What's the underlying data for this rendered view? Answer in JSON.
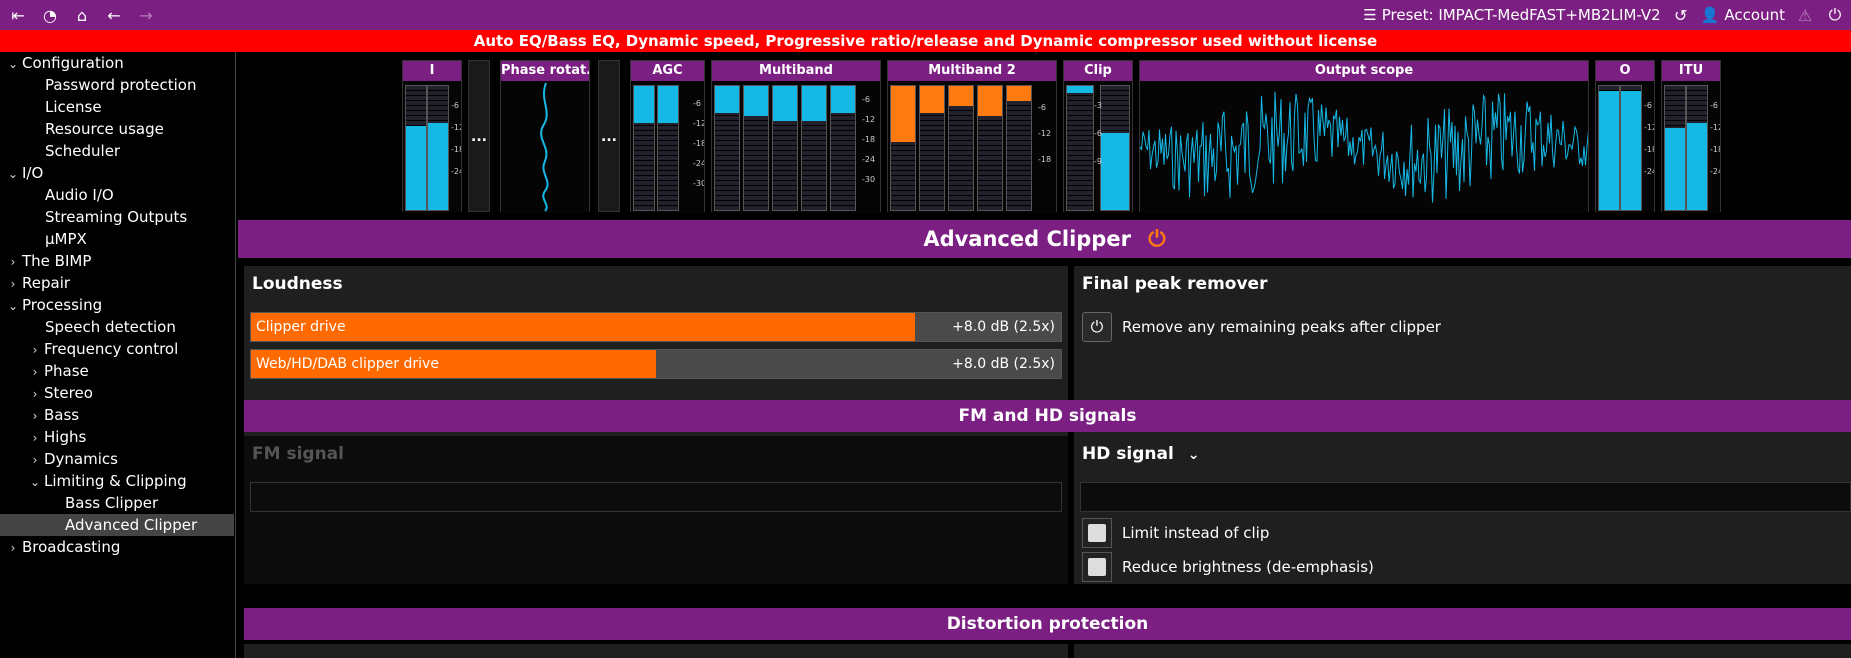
{
  "topbar": {
    "preset_label": "Preset: IMPACT-MedFAST+MB2LIM-V2",
    "account_label": "Account"
  },
  "warning": "Auto EQ/Bass EQ, Dynamic speed, Progressive ratio/release and Dynamic compressor used without license",
  "sidebar": {
    "items": [
      {
        "label": "Configuration"
      },
      {
        "label": "Password protection"
      },
      {
        "label": "License"
      },
      {
        "label": "Resource usage"
      },
      {
        "label": "Scheduler"
      },
      {
        "label": "I/O"
      },
      {
        "label": "Audio I/O"
      },
      {
        "label": "Streaming Outputs"
      },
      {
        "label": "µMPX"
      },
      {
        "label": "The BIMP"
      },
      {
        "label": "Repair"
      },
      {
        "label": "Processing"
      },
      {
        "label": "Speech detection"
      },
      {
        "label": "Frequency control"
      },
      {
        "label": "Phase"
      },
      {
        "label": "Stereo"
      },
      {
        "label": "Bass"
      },
      {
        "label": "Highs"
      },
      {
        "label": "Dynamics"
      },
      {
        "label": "Limiting & Clipping"
      },
      {
        "label": "Bass Clipper"
      },
      {
        "label": "Advanced Clipper"
      },
      {
        "label": "Broadcasting"
      }
    ]
  },
  "meters": {
    "input": "I",
    "phase": "Phase rotat...",
    "agc": "AGC",
    "multiband": "Multiband",
    "multiband2": "Multiband 2",
    "clip": "Clip",
    "scope": "Output scope",
    "output": "O",
    "itu": "ITU",
    "dots": "...",
    "scale_a": [
      "-6",
      "-12",
      "-18",
      "-24"
    ],
    "scale_b": [
      "-6",
      "-12",
      "-18",
      "-24",
      "-30"
    ],
    "scale_c": [
      "-6",
      "-12",
      "-18"
    ],
    "scale_clip": [
      "-3",
      "-6",
      "-9"
    ]
  },
  "main": {
    "title": "Advanced Clipper",
    "loudness": {
      "title": "Loudness",
      "clipper_drive_label": "Clipper drive",
      "clipper_drive_value": "+8.0 dB (2.5x)",
      "clipper_drive_fraction": 0.82,
      "web_drive_label": "Web/HD/DAB clipper drive",
      "web_drive_value": "+8.0 dB (2.5x)",
      "web_drive_fraction": 0.5
    },
    "final_peak": {
      "title": "Final peak remover",
      "option": "Remove any remaining peaks after clipper"
    },
    "fm_hd_header": "FM and HD signals",
    "fm_signal": "FM signal",
    "hd_signal": "HD signal",
    "limit_label": "Limit instead of clip",
    "reduce_label": "Reduce brightness (de-emphasis)",
    "distortion_header": "Distortion protection"
  }
}
